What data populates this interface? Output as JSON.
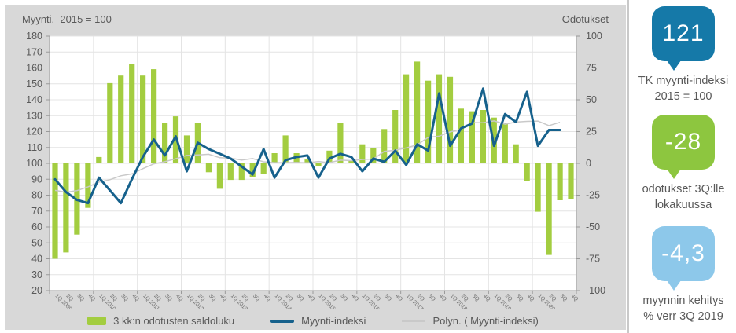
{
  "header": {
    "left_title": "Myynti,  2015 = 100",
    "right_title": "Odotukset"
  },
  "chart_data": {
    "type": "bar",
    "subtype": "combo bar + line with polynomial trend",
    "x_labels": [
      "1Q 2009",
      "2Q",
      "3Q",
      "4Q",
      "1Q 2010",
      "2Q",
      "3Q",
      "4Q",
      "1Q 2011",
      "2Q",
      "3Q",
      "4Q",
      "1Q 2012",
      "2Q",
      "3Q",
      "4Q",
      "1Q 2013",
      "2Q",
      "3Q",
      "4Q",
      "1Q 2014",
      "2Q",
      "3Q",
      "4Q",
      "1Q 2015",
      "2Q",
      "3Q",
      "4Q",
      "1Q 2016",
      "2Q",
      "3Q",
      "4Q",
      "1Q 2017",
      "2Q",
      "3Q",
      "4Q",
      "1Q 2018",
      "2Q",
      "3Q",
      "4Q",
      "1Q 2019",
      "2Q",
      "3Q",
      "4Q",
      "1Q 2020",
      "2Q",
      "3Q",
      "4Q"
    ],
    "left_axis": {
      "title": "Myynti,  2015 = 100",
      "min": 20,
      "max": 180,
      "step": 10
    },
    "right_axis": {
      "title": "Odotukset",
      "min": -100,
      "max": 100,
      "step": 25
    },
    "grid": true,
    "legend_position": "bottom",
    "series": [
      {
        "name": "3 kk:n odotusten saldoluku",
        "type": "bar",
        "axis": "right",
        "color": "#a3cd40",
        "values": [
          -75,
          -70,
          -56,
          -35,
          5,
          63,
          69,
          78,
          69,
          74,
          32,
          37,
          22,
          32,
          -7,
          -20,
          -13,
          -13,
          -11,
          -8,
          8,
          22,
          8,
          3,
          -2,
          10,
          32,
          2,
          15,
          12,
          27,
          42,
          70,
          80,
          65,
          70,
          68,
          43,
          41,
          42,
          36,
          32,
          15,
          -14,
          -38,
          -72,
          -29,
          -28
        ]
      },
      {
        "name": "Myynti-indeksi",
        "type": "line",
        "axis": "left",
        "color": "#16618c",
        "values": [
          90,
          82,
          77,
          75,
          91,
          83,
          75,
          90,
          104,
          115,
          105,
          117,
          95,
          113,
          109,
          106,
          103,
          98,
          93,
          109,
          91,
          102,
          104,
          105,
          91,
          103,
          106,
          104,
          95,
          103,
          101,
          108,
          99,
          112,
          108,
          144,
          111,
          122,
          125,
          147,
          111,
          131,
          126,
          145,
          111,
          121,
          121,
          null
        ]
      },
      {
        "name": "Polyn. ( Myynti-indeksi)",
        "type": "trend",
        "axis": "left",
        "color": "#c9c9c9"
      }
    ]
  },
  "callouts": [
    {
      "value": "121",
      "color": "#1579a8",
      "label_lines": [
        "TK myynti-indeksi",
        "2015 = 100"
      ]
    },
    {
      "value": "-28",
      "color": "#8dc63f",
      "label_lines": [
        "odotukset 3Q:lle",
        "lokakuussa"
      ]
    },
    {
      "value": "-4,3",
      "color": "#8dc8ea",
      "label_lines": [
        "myynnin kehitys",
        "% verr 3Q 2019"
      ]
    }
  ]
}
